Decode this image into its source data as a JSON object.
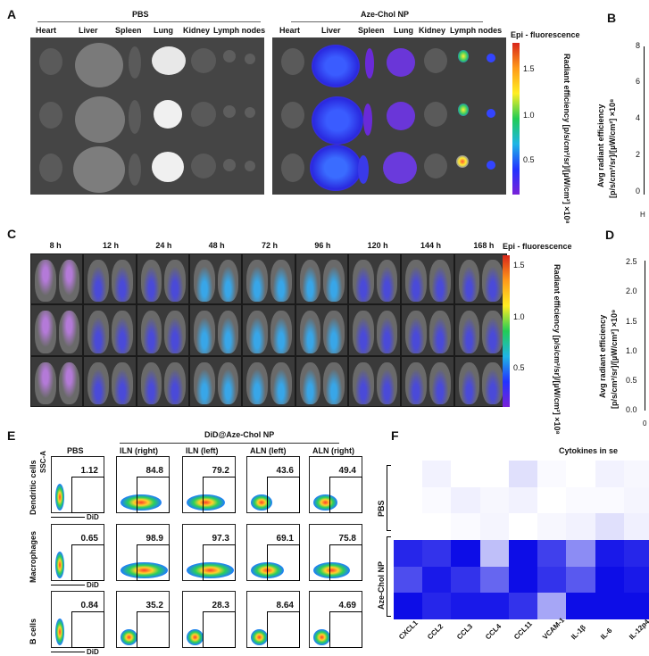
{
  "panels": {
    "A": {
      "label": "A",
      "groups": [
        "PBS",
        "Aze-Chol NP"
      ],
      "organs_pbs": [
        "Heart",
        "Liver",
        "Spleen",
        "Lung",
        "Kidney",
        "Lymph nodes"
      ],
      "organs_np": [
        "Heart",
        "Liver",
        "Spleen",
        "Lung",
        "Kidney",
        "Lymph nodes"
      ],
      "colorbar": {
        "title": "Epi - fluorescence",
        "axis": "Radiant efficiency [p/s/cm²/sr]/[µW/cm²] ×10⁸",
        "ticks": [
          "1.5",
          "1.0",
          "0.5"
        ]
      }
    },
    "B": {
      "label": "B",
      "ylabel_line1": "Avg radiant efficiency",
      "ylabel_line2": "[p/s/cm²/sr]/[µW/cm²] ×10⁸",
      "yticks": [
        "8",
        "6",
        "4",
        "2",
        "0"
      ],
      "xtick_fragment": "H"
    },
    "C": {
      "label": "C",
      "timepoints": [
        "8 h",
        "12 h",
        "24 h",
        "48 h",
        "72 h",
        "96 h",
        "120 h",
        "144 h",
        "168 h"
      ],
      "colorbar": {
        "title": "Epi - fluorescence",
        "axis": "Radiant efficiency [p/s/cm²/sr]/[µW/cm²] ×10⁸",
        "ticks": [
          "1.5",
          "1.0",
          "0.5"
        ]
      }
    },
    "D": {
      "label": "D",
      "ylabel_line1": "Avg radiant efficiency",
      "ylabel_line2": "[p/s/cm²/sr]/[µW/cm²] ×10⁹",
      "yticks": [
        "2.5",
        "2.0",
        "1.5",
        "1.0",
        "0.5",
        "0.0"
      ],
      "xtick_fragment": "0"
    },
    "E": {
      "label": "E",
      "group_title": "DiD@Aze-Chol NP",
      "columns": [
        "PBS",
        "ILN (right)",
        "ILN (left)",
        "ALN (left)",
        "ALN (right)"
      ],
      "y_axis": "SSC-A",
      "x_axis": "DiD",
      "rows": [
        {
          "name": "Dendritic cells",
          "values": [
            "1.12",
            "84.8",
            "79.2",
            "43.6",
            "49.4"
          ]
        },
        {
          "name": "Macrophages",
          "values": [
            "0.65",
            "98.9",
            "97.3",
            "69.1",
            "75.8"
          ]
        },
        {
          "name": "B cells",
          "values": [
            "0.84",
            "35.2",
            "28.3",
            "8.64",
            "4.69"
          ]
        }
      ]
    },
    "F": {
      "label": "F",
      "title_fragment": "Cytokines in se",
      "groups": [
        "PBS",
        "Aze-Chol NP"
      ],
      "cytokines": [
        "CXCL1",
        "CCL2",
        "CCL3",
        "CCL4",
        "CCL11",
        "VCAM-1",
        "IL-1β",
        "IL-6",
        "IL-12p4"
      ]
    }
  },
  "chart_data": {
    "type": "heatmap",
    "title": "Cytokines in se",
    "columns": [
      "CXCL1",
      "CCL2",
      "CCL3",
      "CCL4",
      "CCL11",
      "VCAM-1",
      "IL-1β",
      "IL-6",
      "IL-12p4"
    ],
    "row_groups": [
      "PBS",
      "PBS",
      "PBS",
      "Aze-Chol NP",
      "Aze-Chol NP",
      "Aze-Chol NP"
    ],
    "intensity": [
      [
        0.0,
        0.05,
        0.0,
        0.0,
        0.12,
        0.02,
        0.0,
        0.05,
        0.03
      ],
      [
        0.0,
        0.02,
        0.06,
        0.03,
        0.05,
        0.0,
        0.02,
        0.02,
        0.04
      ],
      [
        0.0,
        0.0,
        0.02,
        0.04,
        0.0,
        0.03,
        0.05,
        0.12,
        0.06
      ],
      [
        0.85,
        0.8,
        0.95,
        0.25,
        0.95,
        0.75,
        0.45,
        0.9,
        0.85
      ],
      [
        0.7,
        0.9,
        0.8,
        0.6,
        0.95,
        0.8,
        0.65,
        0.95,
        0.9
      ],
      [
        0.95,
        0.85,
        0.9,
        0.9,
        0.8,
        0.35,
        0.95,
        0.95,
        0.95
      ]
    ],
    "colors": {
      "low": "#ffffff",
      "high": "#0000e6"
    }
  }
}
